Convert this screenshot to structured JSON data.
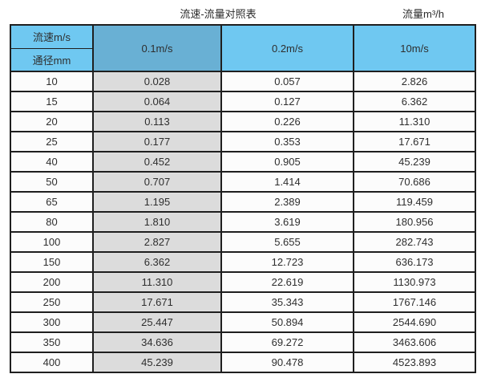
{
  "page": {
    "title_left": "流速-流量对照表",
    "title_right": "流量m³/h"
  },
  "table": {
    "corner": {
      "top": "流速m/s",
      "bottom": "通径mm"
    },
    "velocity_columns": [
      "0.1m/s",
      "0.2m/s",
      "10m/s"
    ],
    "rows": [
      {
        "dn": "10",
        "values": [
          "0.028",
          "0.057",
          "2.826"
        ]
      },
      {
        "dn": "15",
        "values": [
          "0.064",
          "0.127",
          "6.362"
        ]
      },
      {
        "dn": "20",
        "values": [
          "0.113",
          "0.226",
          "11.310"
        ]
      },
      {
        "dn": "25",
        "values": [
          "0.177",
          "0.353",
          "17.671"
        ]
      },
      {
        "dn": "40",
        "values": [
          "0.452",
          "0.905",
          "45.239"
        ]
      },
      {
        "dn": "50",
        "values": [
          "0.707",
          "1.414",
          "70.686"
        ]
      },
      {
        "dn": "65",
        "values": [
          "1.195",
          "2.389",
          "119.459"
        ]
      },
      {
        "dn": "80",
        "values": [
          "1.810",
          "3.619",
          "180.956"
        ]
      },
      {
        "dn": "100",
        "values": [
          "2.827",
          "5.655",
          "282.743"
        ]
      },
      {
        "dn": "150",
        "values": [
          "6.362",
          "12.723",
          "636.173"
        ]
      },
      {
        "dn": "200",
        "values": [
          "11.310",
          "22.619",
          "1130.973"
        ]
      },
      {
        "dn": "250",
        "values": [
          "17.671",
          "35.343",
          "1767.146"
        ]
      },
      {
        "dn": "300",
        "values": [
          "25.447",
          "50.894",
          "2544.690"
        ]
      },
      {
        "dn": "350",
        "values": [
          "34.636",
          "69.272",
          "3463.606"
        ]
      },
      {
        "dn": "400",
        "values": [
          "45.239",
          "90.478",
          "4523.893"
        ]
      }
    ]
  },
  "colors": {
    "header_blue": "#6fc8f1",
    "header_blue_dark": "#69b0d4",
    "col_gray": "#dcdcdc",
    "row_bg": "#fcfcfc",
    "border": "#1f1f1f",
    "text": "#303030"
  },
  "chart_data": {
    "type": "table",
    "title": "流速-流量对照表",
    "unit_label": "流量m³/h",
    "row_header": "通径mm",
    "column_header": "流速m/s",
    "columns": [
      "0.1m/s",
      "0.2m/s",
      "10m/s"
    ],
    "row_categories": [
      10,
      15,
      20,
      25,
      40,
      50,
      65,
      80,
      100,
      150,
      200,
      250,
      300,
      350,
      400
    ],
    "series": [
      {
        "name": "0.1m/s",
        "values": [
          0.028,
          0.064,
          0.113,
          0.177,
          0.452,
          0.707,
          1.195,
          1.81,
          2.827,
          6.362,
          11.31,
          17.671,
          25.447,
          34.636,
          45.239
        ]
      },
      {
        "name": "0.2m/s",
        "values": [
          0.057,
          0.127,
          0.226,
          0.353,
          0.905,
          1.414,
          2.389,
          3.619,
          5.655,
          12.723,
          22.619,
          35.343,
          50.894,
          69.272,
          90.478
        ]
      },
      {
        "name": "10m/s",
        "values": [
          2.826,
          6.362,
          11.31,
          17.671,
          45.239,
          70.686,
          119.459,
          180.956,
          282.743,
          636.173,
          1130.973,
          1767.146,
          2544.69,
          3463.606,
          4523.893
        ]
      }
    ]
  }
}
